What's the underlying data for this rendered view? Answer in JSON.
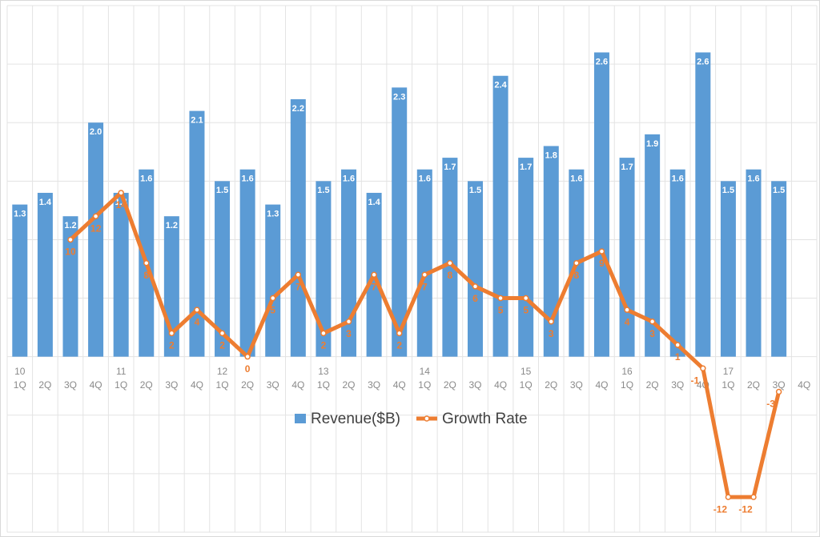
{
  "chart_data": {
    "type": "bar-line",
    "categories": [
      "1Q",
      "2Q",
      "3Q",
      "4Q",
      "1Q",
      "2Q",
      "3Q",
      "4Q",
      "1Q",
      "2Q",
      "3Q",
      "4Q",
      "1Q",
      "2Q",
      "3Q",
      "4Q",
      "1Q",
      "2Q",
      "3Q",
      "4Q",
      "1Q",
      "2Q",
      "3Q",
      "4Q",
      "1Q",
      "2Q",
      "3Q",
      "4Q",
      "1Q",
      "2Q",
      "3Q",
      "4Q"
    ],
    "category_groups": [
      "10",
      null,
      null,
      null,
      "11",
      null,
      null,
      null,
      "12",
      null,
      null,
      null,
      "13",
      null,
      null,
      null,
      "14",
      null,
      null,
      null,
      "15",
      null,
      null,
      null,
      "16",
      null,
      null,
      null,
      "17",
      null,
      null,
      null
    ],
    "ylim": [
      -1.5,
      3
    ],
    "yticks": [
      -1.5,
      -1,
      -0.5,
      0,
      0.5,
      1,
      1.5,
      2,
      2.5,
      3
    ],
    "y2lim": [
      -15,
      30
    ],
    "grid": true,
    "series": [
      {
        "name": "Revenue($B)",
        "type": "bar",
        "color": "#5b9bd5",
        "values": [
          1.3,
          1.4,
          1.2,
          2.0,
          1.4,
          1.6,
          1.2,
          2.1,
          1.5,
          1.6,
          1.3,
          2.2,
          1.5,
          1.6,
          1.4,
          2.3,
          1.6,
          1.7,
          1.5,
          2.4,
          1.7,
          1.8,
          1.6,
          2.6,
          1.7,
          1.9,
          1.6,
          2.6,
          1.5,
          1.6,
          1.5,
          null
        ],
        "value_labels": [
          "1.3",
          "1.4",
          "1.2",
          "2.0",
          "1.4",
          "1.6",
          "1.2",
          "2.1",
          "1.5",
          "1.6",
          "1.3",
          "2.2",
          "1.5",
          "1.6",
          "1.4",
          "2.3",
          "1.6",
          "1.7",
          "1.5",
          "2.4",
          "1.7",
          "1.8",
          "1.6",
          "2.6",
          "1.7",
          "1.9",
          "1.6",
          "2.6",
          "1.5",
          "1.6",
          "1.5",
          null
        ]
      },
      {
        "name": "Growth Rate",
        "type": "line",
        "axis": "y2",
        "color": "#ed7d31",
        "values": [
          null,
          null,
          10,
          12,
          14,
          8,
          2,
          4,
          2,
          0,
          5,
          7,
          2,
          3,
          7,
          2,
          7,
          8,
          6,
          5,
          5,
          3,
          8,
          9,
          4,
          3,
          1,
          -1,
          -12,
          -12,
          -3,
          null
        ]
      }
    ],
    "legend": "bottom"
  }
}
